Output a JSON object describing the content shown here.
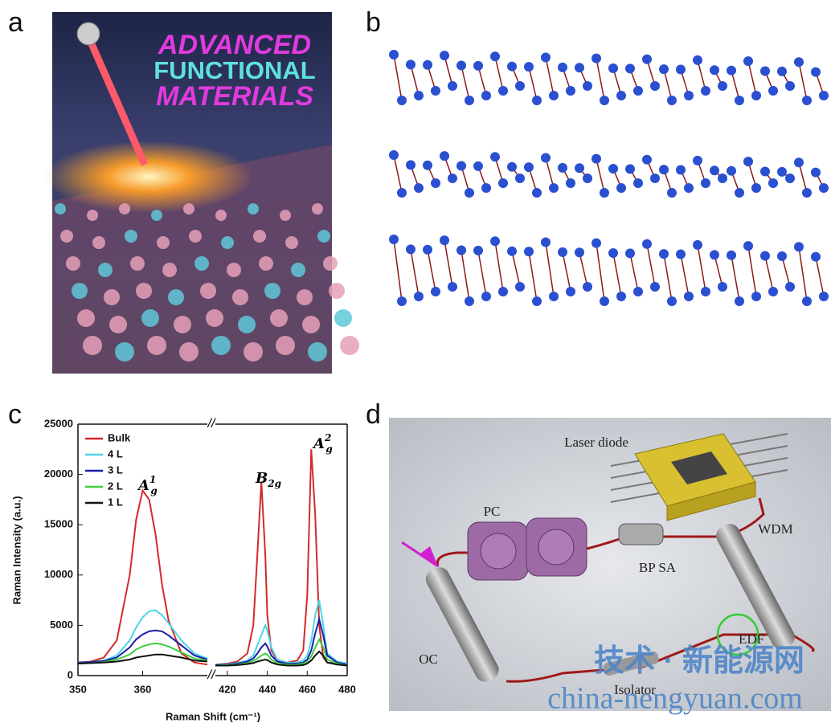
{
  "panel_labels": [
    "a",
    "b",
    "c",
    "d"
  ],
  "cover": {
    "title_lines": [
      "ADVANCED",
      "FUNCTIONAL",
      "MATERIALS"
    ]
  },
  "chart_data": {
    "type": "line",
    "x_label": "Raman Shift (cm⁻¹)",
    "y_label": "Raman Intensity (a.u.)",
    "x": [
      [
        350,
        352,
        354,
        356,
        358,
        359,
        360,
        361,
        362,
        363,
        364,
        366,
        368,
        370
      ],
      [
        414,
        420,
        425,
        430,
        433,
        435,
        437,
        439,
        440,
        442,
        445,
        450,
        455,
        458,
        460,
        462,
        464,
        466,
        468,
        470,
        475,
        480
      ]
    ],
    "xlim": [
      [
        350,
        370
      ],
      [
        414,
        480
      ]
    ],
    "xticks": [
      [
        350,
        360
      ],
      [
        420,
        440,
        460,
        480
      ]
    ],
    "ylim": [
      0,
      25000
    ],
    "yticks": [
      0,
      5000,
      10000,
      15000,
      20000,
      25000
    ],
    "legend": "upper left",
    "series": [
      {
        "name": "Bulk",
        "color": "#d42a2a",
        "values": [
          [
            1300,
            1400,
            1800,
            3500,
            10000,
            15500,
            18400,
            17500,
            14000,
            9000,
            5500,
            2200,
            1300,
            1100
          ],
          [
            1100,
            1200,
            1400,
            2200,
            5000,
            12000,
            19300,
            12000,
            6000,
            2500,
            1500,
            1300,
            1500,
            2500,
            8000,
            22500,
            16000,
            5000,
            1800,
            1300,
            1200,
            1100
          ]
        ]
      },
      {
        "name": "4 L",
        "color": "#4fd3e8",
        "values": [
          [
            1300,
            1350,
            1500,
            2000,
            3500,
            4800,
            5800,
            6400,
            6500,
            6000,
            5200,
            3500,
            2200,
            1700
          ],
          [
            1100,
            1150,
            1250,
            1500,
            2000,
            3000,
            4000,
            5000,
            4500,
            2800,
            1600,
            1300,
            1300,
            1500,
            2000,
            3500,
            6000,
            7500,
            5000,
            2200,
            1400,
            1200
          ]
        ]
      },
      {
        "name": "3 L",
        "color": "#1c1ca8",
        "values": [
          [
            1300,
            1350,
            1450,
            1800,
            2800,
            3600,
            4100,
            4400,
            4500,
            4400,
            4000,
            3000,
            2000,
            1600
          ],
          [
            1050,
            1100,
            1200,
            1400,
            1700,
            2200,
            2800,
            3200,
            2900,
            2000,
            1400,
            1200,
            1200,
            1300,
            1600,
            2500,
            4200,
            5600,
            4000,
            2000,
            1300,
            1100
          ]
        ]
      },
      {
        "name": "2 L",
        "color": "#3fcf3f",
        "values": [
          [
            1200,
            1250,
            1350,
            1600,
            2100,
            2600,
            2900,
            3100,
            3200,
            3100,
            2900,
            2300,
            1700,
            1500
          ],
          [
            1000,
            1050,
            1100,
            1250,
            1450,
            1700,
            2000,
            2200,
            2100,
            1600,
            1200,
            1100,
            1100,
            1200,
            1400,
            1900,
            2800,
            3600,
            2800,
            1600,
            1200,
            1000
          ]
        ]
      },
      {
        "name": "1 L",
        "color": "#111111",
        "values": [
          [
            1200,
            1250,
            1300,
            1400,
            1600,
            1800,
            1900,
            2000,
            2100,
            2100,
            2000,
            1800,
            1500,
            1400
          ],
          [
            1000,
            1000,
            1050,
            1150,
            1250,
            1400,
            1500,
            1600,
            1550,
            1300,
            1100,
            1000,
            1000,
            1050,
            1200,
            1500,
            2000,
            2400,
            2000,
            1300,
            1100,
            1000
          ]
        ]
      }
    ],
    "annotations": [
      {
        "base": "A",
        "sub": "g",
        "sup": "1"
      },
      {
        "base": "B",
        "sub": "2g"
      },
      {
        "base": "A",
        "sub": "g",
        "sup": "2"
      }
    ]
  },
  "diagram": {
    "labels": [
      "Laser diode",
      "PC",
      "BP SA",
      "WDM",
      "EDF",
      "OC",
      "Isolator"
    ]
  },
  "watermark": [
    "技术 · 新能源网",
    "china-nengyuan.com"
  ]
}
